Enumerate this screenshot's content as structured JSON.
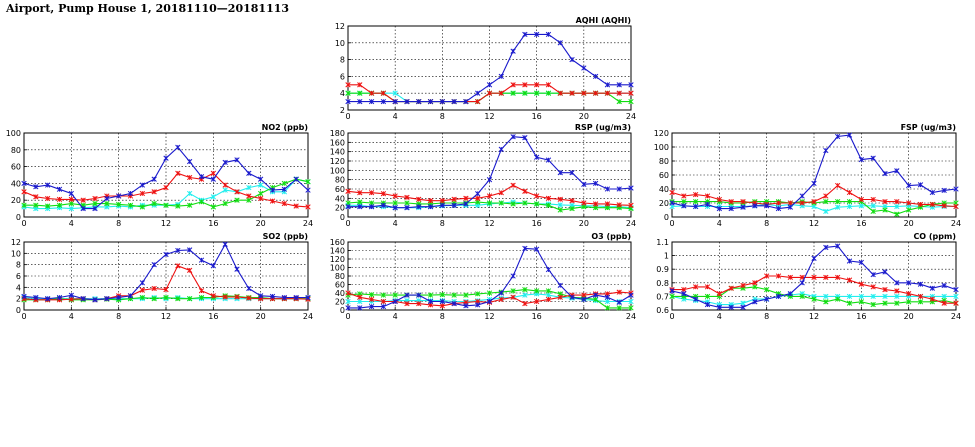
{
  "page": {
    "title": "Airport, Pump House 1, 20181110—20181113"
  },
  "colors": {
    "blue": "#1a1acc",
    "red": "#ee1111",
    "green": "#11dd11",
    "cyan": "#22eeee"
  },
  "chart_data": [
    {
      "type": "line",
      "title": "AQHI (AQHI)",
      "xlim": [
        0,
        24
      ],
      "ylim": [
        2,
        12
      ],
      "xticks": [
        0,
        4,
        8,
        12,
        16,
        20,
        24
      ],
      "yticks": [
        2,
        4,
        6,
        8,
        10,
        12
      ],
      "x": [
        0,
        1,
        2,
        3,
        4,
        5,
        6,
        7,
        8,
        9,
        10,
        11,
        12,
        13,
        14,
        15,
        16,
        17,
        18,
        19,
        20,
        21,
        22,
        23,
        24
      ],
      "series": [
        {
          "color": "blue",
          "values": [
            3,
            3,
            3,
            3,
            3,
            3,
            3,
            3,
            3,
            3,
            3,
            4,
            5,
            6,
            9,
            11,
            11,
            11,
            10,
            8,
            7,
            6,
            5,
            5,
            5
          ]
        },
        {
          "color": "red",
          "values": [
            5,
            5,
            4,
            4,
            3,
            3,
            3,
            3,
            3,
            3,
            3,
            3,
            4,
            4,
            5,
            5,
            5,
            5,
            4,
            4,
            4,
            4,
            4,
            4,
            4
          ]
        },
        {
          "color": "green",
          "values": [
            4,
            4,
            4,
            4,
            3,
            3,
            3,
            3,
            3,
            3,
            3,
            3,
            4,
            4,
            4,
            4,
            4,
            4,
            4,
            4,
            4,
            4,
            4,
            3,
            3
          ]
        },
        {
          "color": "cyan",
          "values": [
            4,
            4,
            4,
            4,
            4,
            3,
            3,
            3,
            3,
            3,
            3,
            3,
            4,
            4,
            4,
            4,
            4,
            4,
            4,
            4,
            4,
            4,
            4,
            4,
            4
          ]
        }
      ]
    },
    {
      "type": "line",
      "title": "NO2 (ppb)",
      "xlim": [
        0,
        24
      ],
      "ylim": [
        0,
        100
      ],
      "xticks": [
        0,
        4,
        8,
        12,
        16,
        20,
        24
      ],
      "yticks": [
        0,
        20,
        40,
        60,
        80,
        100
      ],
      "x": [
        0,
        1,
        2,
        3,
        4,
        5,
        6,
        7,
        8,
        9,
        10,
        11,
        12,
        13,
        14,
        15,
        16,
        17,
        18,
        19,
        20,
        21,
        22,
        23,
        24
      ],
      "series": [
        {
          "color": "blue",
          "values": [
            40,
            36,
            38,
            33,
            28,
            10,
            10,
            22,
            25,
            28,
            38,
            45,
            70,
            83,
            66,
            48,
            45,
            65,
            68,
            52,
            45,
            32,
            33,
            45,
            32
          ]
        },
        {
          "color": "red",
          "values": [
            30,
            24,
            22,
            21,
            21,
            20,
            22,
            25,
            25,
            25,
            28,
            30,
            35,
            52,
            47,
            45,
            52,
            38,
            30,
            25,
            22,
            19,
            16,
            13,
            12
          ]
        },
        {
          "color": "green",
          "values": [
            14,
            14,
            13,
            14,
            16,
            14,
            16,
            16,
            15,
            14,
            12,
            16,
            14,
            13,
            14,
            18,
            12,
            16,
            20,
            20,
            28,
            35,
            40,
            45,
            42
          ]
        },
        {
          "color": "cyan",
          "values": [
            12,
            10,
            10,
            11,
            10,
            11,
            12,
            12,
            13,
            12,
            14,
            14,
            14,
            15,
            28,
            20,
            24,
            32,
            30,
            35,
            38,
            30,
            30,
            45,
            42
          ]
        }
      ]
    },
    {
      "type": "line",
      "title": "RSP (ug/m3)",
      "xlim": [
        0,
        24
      ],
      "ylim": [
        0,
        180
      ],
      "xticks": [
        0,
        4,
        8,
        12,
        16,
        20,
        24
      ],
      "yticks": [
        0,
        20,
        40,
        60,
        80,
        100,
        120,
        140,
        160,
        180
      ],
      "x": [
        0,
        1,
        2,
        3,
        4,
        5,
        6,
        7,
        8,
        9,
        10,
        11,
        12,
        13,
        14,
        15,
        16,
        17,
        18,
        19,
        20,
        21,
        22,
        23,
        24
      ],
      "series": [
        {
          "color": "blue",
          "values": [
            22,
            22,
            22,
            25,
            20,
            20,
            22,
            22,
            25,
            25,
            28,
            50,
            80,
            145,
            172,
            170,
            128,
            122,
            95,
            95,
            70,
            72,
            60,
            60,
            62
          ]
        },
        {
          "color": "red",
          "values": [
            55,
            52,
            52,
            50,
            45,
            42,
            38,
            35,
            35,
            38,
            40,
            40,
            45,
            52,
            68,
            55,
            45,
            40,
            38,
            35,
            30,
            28,
            28,
            26,
            25
          ]
        },
        {
          "color": "green",
          "values": [
            30,
            32,
            30,
            30,
            30,
            30,
            28,
            28,
            30,
            30,
            30,
            32,
            30,
            30,
            28,
            30,
            28,
            25,
            15,
            18,
            22,
            20,
            20,
            20,
            18
          ]
        },
        {
          "color": "cyan",
          "values": [
            25,
            25,
            22,
            22,
            20,
            20,
            20,
            22,
            24,
            25,
            25,
            25,
            28,
            30,
            32,
            30,
            28,
            28,
            26,
            25,
            24,
            24,
            22,
            22,
            20
          ]
        }
      ]
    },
    {
      "type": "line",
      "title": "FSP (ug/m3)",
      "xlim": [
        0,
        24
      ],
      "ylim": [
        0,
        120
      ],
      "xticks": [
        0,
        4,
        8,
        12,
        16,
        20,
        24
      ],
      "yticks": [
        0,
        20,
        40,
        60,
        80,
        100,
        120
      ],
      "x": [
        0,
        1,
        2,
        3,
        4,
        5,
        6,
        7,
        8,
        9,
        10,
        11,
        12,
        13,
        14,
        15,
        16,
        17,
        18,
        19,
        20,
        21,
        22,
        23,
        24
      ],
      "series": [
        {
          "color": "blue",
          "values": [
            20,
            16,
            15,
            18,
            12,
            12,
            14,
            16,
            16,
            12,
            14,
            30,
            48,
            95,
            115,
            117,
            82,
            84,
            62,
            66,
            45,
            46,
            35,
            38,
            40
          ]
        },
        {
          "color": "red",
          "values": [
            35,
            30,
            32,
            30,
            25,
            22,
            22,
            20,
            18,
            20,
            20,
            20,
            22,
            30,
            45,
            35,
            25,
            25,
            22,
            22,
            20,
            18,
            18,
            16,
            15
          ]
        },
        {
          "color": "green",
          "values": [
            22,
            22,
            22,
            22,
            22,
            20,
            20,
            22,
            22,
            22,
            20,
            22,
            20,
            22,
            22,
            22,
            22,
            8,
            10,
            4,
            10,
            14,
            18,
            20,
            20
          ]
        },
        {
          "color": "cyan",
          "values": [
            15,
            16,
            15,
            15,
            15,
            15,
            15,
            16,
            18,
            16,
            18,
            16,
            15,
            8,
            14,
            15,
            16,
            16,
            15,
            15,
            16,
            15,
            14,
            15,
            15
          ]
        }
      ]
    },
    {
      "type": "line",
      "title": "SO2 (ppb)",
      "xlim": [
        0,
        24
      ],
      "ylim": [
        0,
        12
      ],
      "xticks": [
        0,
        4,
        8,
        12,
        16,
        20,
        24
      ],
      "yticks": [
        0,
        2,
        4,
        6,
        8,
        10,
        12
      ],
      "x": [
        0,
        1,
        2,
        3,
        4,
        5,
        6,
        7,
        8,
        9,
        10,
        11,
        12,
        13,
        14,
        15,
        16,
        17,
        18,
        19,
        20,
        21,
        22,
        23,
        24
      ],
      "series": [
        {
          "color": "blue",
          "values": [
            2.4,
            2.2,
            2.0,
            2.2,
            2.6,
            2.0,
            1.8,
            2.0,
            2.2,
            2.5,
            4.8,
            8.0,
            9.8,
            10.5,
            10.6,
            8.8,
            7.8,
            11.6,
            7.2,
            3.8,
            2.5,
            2.4,
            2.2,
            2.2,
            2.2
          ]
        },
        {
          "color": "red",
          "values": [
            2.0,
            1.8,
            1.8,
            1.8,
            1.9,
            2.0,
            1.8,
            2.0,
            2.5,
            2.5,
            3.5,
            3.8,
            3.6,
            7.8,
            7.0,
            3.4,
            2.5,
            2.3,
            2.3,
            2.1,
            2.0,
            2.0,
            2.0,
            2.0,
            1.9
          ]
        },
        {
          "color": "green",
          "values": [
            1.8,
            1.8,
            1.8,
            2.0,
            1.8,
            1.8,
            1.8,
            1.9,
            1.8,
            2.0,
            2.2,
            2.0,
            2.2,
            2.0,
            2.0,
            2.2,
            2.2,
            2.5,
            2.4,
            2.2,
            2.2,
            2.0,
            2.0,
            2.0,
            2.0
          ]
        },
        {
          "color": "cyan",
          "values": [
            2.2,
            2.0,
            2.0,
            2.0,
            2.0,
            2.0,
            2.0,
            2.0,
            2.0,
            2.0,
            2.0,
            2.2,
            2.0,
            2.2,
            2.0,
            2.0,
            2.0,
            2.0,
            2.0,
            2.0,
            2.0,
            2.0,
            2.0,
            2.0,
            2.0
          ]
        }
      ]
    },
    {
      "type": "line",
      "title": "O3 (ppb)",
      "xlim": [
        0,
        24
      ],
      "ylim": [
        0,
        160
      ],
      "xticks": [
        0,
        4,
        8,
        12,
        16,
        20,
        24
      ],
      "yticks": [
        0,
        20,
        40,
        60,
        80,
        100,
        120,
        140,
        160
      ],
      "x": [
        0,
        1,
        2,
        3,
        4,
        5,
        6,
        7,
        8,
        9,
        10,
        11,
        12,
        13,
        14,
        15,
        16,
        17,
        18,
        19,
        20,
        21,
        22,
        23,
        24
      ],
      "series": [
        {
          "color": "blue",
          "values": [
            5,
            5,
            8,
            8,
            20,
            35,
            35,
            20,
            20,
            15,
            10,
            12,
            20,
            40,
            80,
            145,
            143,
            95,
            58,
            30,
            25,
            35,
            30,
            18,
            35
          ]
        },
        {
          "color": "red",
          "values": [
            40,
            30,
            25,
            20,
            20,
            15,
            15,
            12,
            10,
            15,
            18,
            20,
            18,
            25,
            30,
            15,
            20,
            25,
            30,
            35,
            35,
            38,
            38,
            42,
            40
          ]
        },
        {
          "color": "green",
          "values": [
            35,
            38,
            36,
            35,
            35,
            35,
            35,
            35,
            36,
            35,
            35,
            38,
            40,
            42,
            45,
            48,
            45,
            45,
            38,
            30,
            28,
            25,
            5,
            5,
            5
          ]
        },
        {
          "color": "cyan",
          "values": [
            20,
            20,
            20,
            20,
            22,
            22,
            22,
            22,
            22,
            20,
            20,
            22,
            25,
            28,
            30,
            35,
            38,
            35,
            30,
            28,
            25,
            22,
            20,
            20,
            20
          ]
        }
      ]
    },
    {
      "type": "line",
      "title": "CO (ppm)",
      "xlim": [
        0,
        24
      ],
      "ylim": [
        0.6,
        1.1
      ],
      "xticks": [
        0,
        4,
        8,
        12,
        16,
        20,
        24
      ],
      "yticks": [
        0.6,
        0.7,
        0.8,
        0.9,
        1.0,
        1.1
      ],
      "x": [
        0,
        1,
        2,
        3,
        4,
        5,
        6,
        7,
        8,
        9,
        10,
        11,
        12,
        13,
        14,
        15,
        16,
        17,
        18,
        19,
        20,
        21,
        22,
        23,
        24
      ],
      "series": [
        {
          "color": "blue",
          "values": [
            0.74,
            0.72,
            0.68,
            0.64,
            0.62,
            0.62,
            0.62,
            0.66,
            0.68,
            0.7,
            0.72,
            0.8,
            0.98,
            1.06,
            1.07,
            0.96,
            0.95,
            0.86,
            0.88,
            0.8,
            0.8,
            0.79,
            0.76,
            0.78,
            0.75
          ]
        },
        {
          "color": "red",
          "values": [
            0.75,
            0.75,
            0.77,
            0.77,
            0.72,
            0.76,
            0.78,
            0.8,
            0.85,
            0.85,
            0.84,
            0.84,
            0.84,
            0.84,
            0.84,
            0.82,
            0.79,
            0.77,
            0.75,
            0.74,
            0.72,
            0.7,
            0.68,
            0.65,
            0.65
          ]
        },
        {
          "color": "green",
          "values": [
            0.7,
            0.7,
            0.7,
            0.7,
            0.7,
            0.76,
            0.76,
            0.77,
            0.75,
            0.72,
            0.7,
            0.7,
            0.68,
            0.66,
            0.68,
            0.65,
            0.66,
            0.64,
            0.65,
            0.65,
            0.66,
            0.66,
            0.66,
            0.67,
            0.65
          ]
        },
        {
          "color": "cyan",
          "values": [
            0.7,
            0.68,
            0.67,
            0.66,
            0.64,
            0.64,
            0.65,
            0.68,
            0.68,
            0.7,
            0.71,
            0.72,
            0.7,
            0.7,
            0.7,
            0.7,
            0.7,
            0.7,
            0.7,
            0.7,
            0.7,
            0.7,
            0.7,
            0.7,
            0.7
          ]
        }
      ]
    }
  ]
}
